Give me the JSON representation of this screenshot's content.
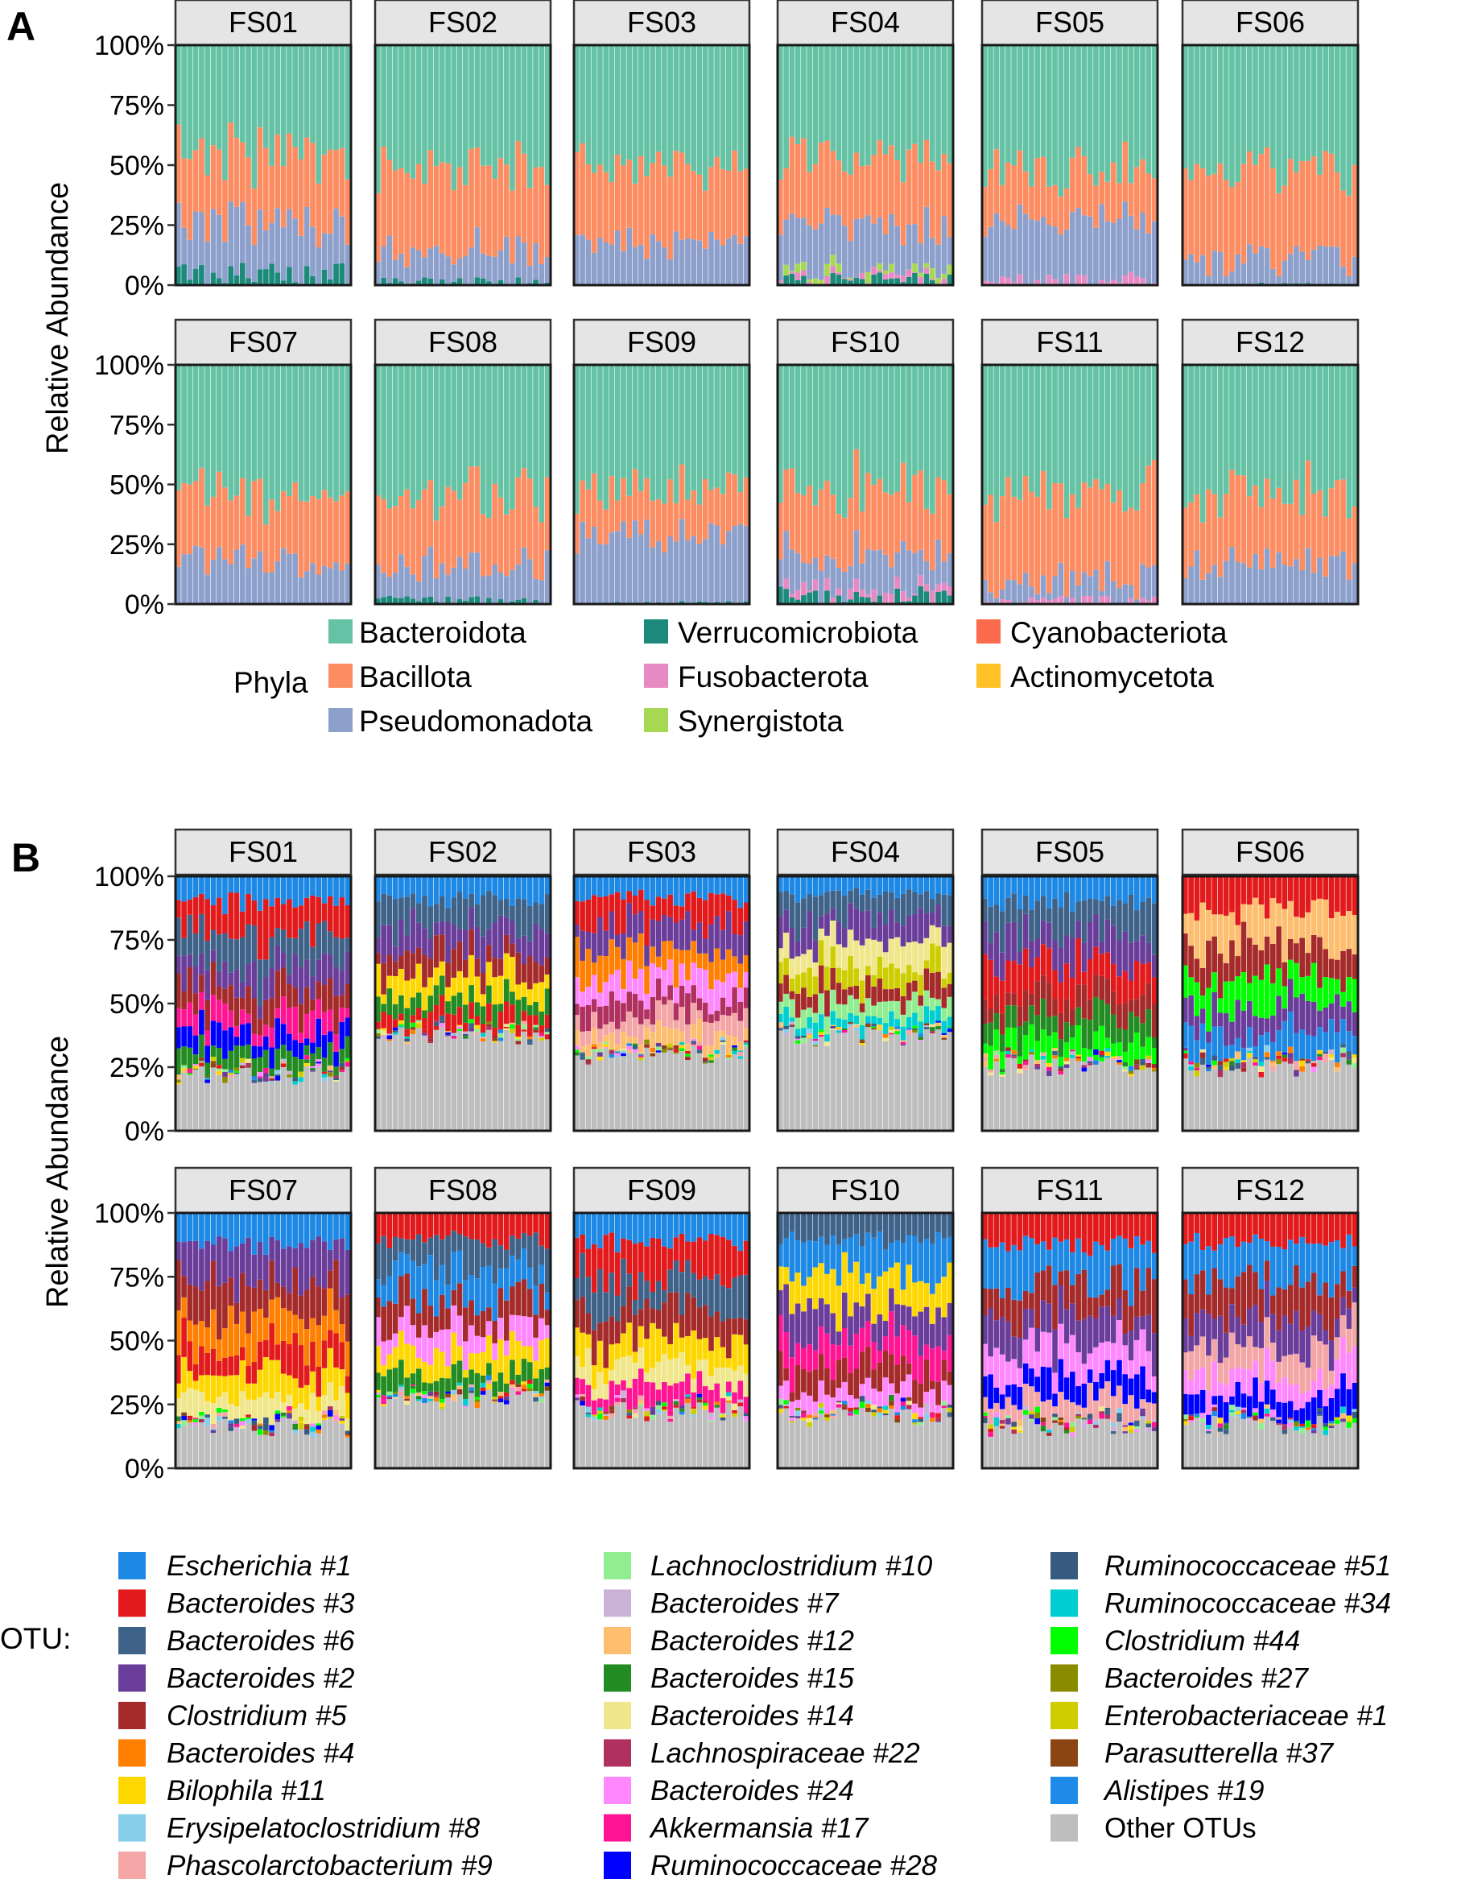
{
  "figure": {
    "panel_a_label": "A",
    "panel_b_label": "B"
  },
  "chart_data": [
    {
      "type": "bar",
      "stacked": true,
      "panel": "A",
      "facets": [
        "FS01",
        "FS02",
        "FS03",
        "FS04",
        "FS05",
        "FS06",
        "FS07",
        "FS08",
        "FS09",
        "FS10",
        "FS11",
        "FS12"
      ],
      "facet_layout": "2 rows x 6 columns",
      "ylabel": "Relative Abundance",
      "yticks": [
        "0%",
        "25%",
        "50%",
        "75%",
        "100%"
      ],
      "ylim": [
        0,
        1
      ],
      "grid": false,
      "legend_title": "Phyla",
      "legend_position": "bottom",
      "series": [
        {
          "name": "Bacteroidota",
          "color": "#66C2A5"
        },
        {
          "name": "Bacillota",
          "color": "#FC8D62"
        },
        {
          "name": "Pseudomonadota",
          "color": "#8DA0CB"
        },
        {
          "name": "Verrucomicrobiota",
          "color": "#1B8A7A"
        },
        {
          "name": "Fusobacterota",
          "color": "#E78AC3"
        },
        {
          "name": "Synergistota",
          "color": "#A6D854"
        },
        {
          "name": "Cyanobacteriota",
          "color": "#FB6A4A"
        },
        {
          "name": "Actinomycetota",
          "color": "#FFC125"
        }
      ],
      "legend_order": [
        "Bacteroidota",
        "Bacillota",
        "Pseudomonadota",
        "Verrucomicrobiota",
        "Fusobacterota",
        "Synergistota",
        "Cyanobacteriota",
        "Actinomycetota"
      ],
      "bars_per_facet": 30,
      "approx_mean_composition": {
        "FS01": {
          "Pseudomonadota": 0.22,
          "Bacillota": 0.3,
          "Verrucomicrobiota": 0.05
        },
        "FS02": {
          "Pseudomonadota": 0.14,
          "Bacillota": 0.35,
          "Verrucomicrobiota": 0.02
        },
        "FS03": {
          "Pseudomonadota": 0.17,
          "Bacillota": 0.31
        },
        "FS04": {
          "Pseudomonadota": 0.18,
          "Bacillota": 0.27,
          "Verrucomicrobiota": 0.03,
          "Synergistota": 0.03,
          "Fusobacterota": 0.02
        },
        "FS05": {
          "Pseudomonadota": 0.25,
          "Bacillota": 0.2,
          "Fusobacterota": 0.03
        },
        "FS06": {
          "Pseudomonadota": 0.1,
          "Bacillota": 0.36,
          "Verrucomicrobiota": 0.01
        },
        "FS07": {
          "Pseudomonadota": 0.18,
          "Bacillota": 0.27
        },
        "FS08": {
          "Pseudomonadota": 0.15,
          "Bacillota": 0.3,
          "Verrucomicrobiota": 0.02
        },
        "FS09": {
          "Pseudomonadota": 0.28,
          "Bacillota": 0.18,
          "Verrucomicrobiota": 0.01
        },
        "FS10": {
          "Pseudomonadota": 0.15,
          "Bacillota": 0.27,
          "Verrucomicrobiota": 0.04,
          "Fusobacterota": 0.03
        },
        "FS11": {
          "Pseudomonadota": 0.08,
          "Bacillota": 0.37,
          "Fusobacterota": 0.02
        },
        "FS12": {
          "Pseudomonadota": 0.17,
          "Bacillota": 0.3
        }
      }
    },
    {
      "type": "bar",
      "stacked": true,
      "panel": "B",
      "facets": [
        "FS01",
        "FS02",
        "FS03",
        "FS04",
        "FS05",
        "FS06",
        "FS07",
        "FS08",
        "FS09",
        "FS10",
        "FS11",
        "FS12"
      ],
      "facet_layout": "2 rows x 6 columns",
      "ylabel": "Relative Abundance",
      "yticks": [
        "0%",
        "25%",
        "50%",
        "75%",
        "100%"
      ],
      "ylim": [
        0,
        1
      ],
      "grid": false,
      "legend_title": "OTU:",
      "legend_position": "bottom",
      "series": [
        {
          "name": "Escherichia #1",
          "color": "#1E88E5"
        },
        {
          "name": "Bacteroides #3",
          "color": "#E31A1C"
        },
        {
          "name": "Bacteroides #6",
          "color": "#3F6289"
        },
        {
          "name": "Bacteroides #2",
          "color": "#6A3D9A"
        },
        {
          "name": "Clostridium #5",
          "color": "#A52A2A"
        },
        {
          "name": "Bacteroides #4",
          "color": "#FF7F00"
        },
        {
          "name": "Bilophila #11",
          "color": "#FFD700"
        },
        {
          "name": "Erysipelatoclostridium #8",
          "color": "#87CEEB"
        },
        {
          "name": "Phascolarctobacterium #9",
          "color": "#F4A6A6"
        },
        {
          "name": "Lachnoclostridium #10",
          "color": "#90EE90"
        },
        {
          "name": "Bacteroides #7",
          "color": "#CAB2D6"
        },
        {
          "name": "Bacteroides #12",
          "color": "#FDBF6F"
        },
        {
          "name": "Bacteroides #15",
          "color": "#228B22"
        },
        {
          "name": "Bacteroides #14",
          "color": "#F0E68C"
        },
        {
          "name": "Lachnospiraceae #22",
          "color": "#B03060"
        },
        {
          "name": "Bacteroides #24",
          "color": "#FF88FF"
        },
        {
          "name": "Akkermansia #17",
          "color": "#FF1493"
        },
        {
          "name": "Ruminococcaceae #28",
          "color": "#0000FF"
        },
        {
          "name": "Ruminococcaceae #51",
          "color": "#375A7F"
        },
        {
          "name": "Ruminococcaceae #34",
          "color": "#00CED1"
        },
        {
          "name": "Clostridium #44",
          "color": "#00FF00"
        },
        {
          "name": "Bacteroides #27",
          "color": "#8B8B00"
        },
        {
          "name": "Enterobacteriaceae #1",
          "color": "#CDCD00"
        },
        {
          "name": "Parasutterella #37",
          "color": "#8B4513"
        },
        {
          "name": "Alistipes #19",
          "color": "#1F8BE8"
        },
        {
          "name": "Other OTUs",
          "color": "#BEBEBE"
        }
      ],
      "bars_per_facet": 30,
      "approx_other_otus_fraction": {
        "FS01": 0.22,
        "FS02": 0.37,
        "FS03": 0.3,
        "FS04": 0.37,
        "FS05": 0.25,
        "FS06": 0.25,
        "FS07": 0.16,
        "FS08": 0.27,
        "FS09": 0.22,
        "FS10": 0.2,
        "FS11": 0.16,
        "FS12": 0.17
      }
    }
  ]
}
